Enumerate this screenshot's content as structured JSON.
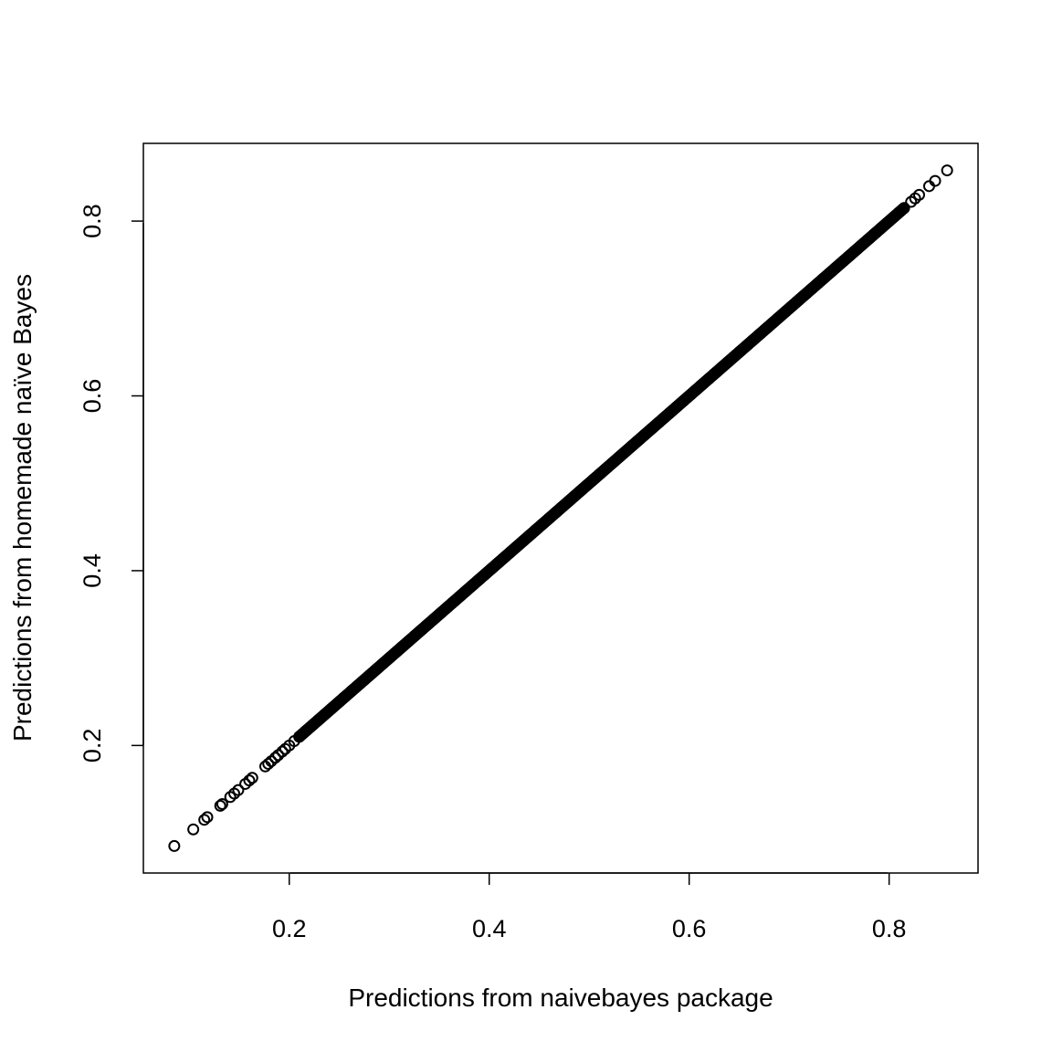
{
  "chart_data": {
    "type": "scatter",
    "title": "",
    "xlabel": "Predictions from naivebayes package",
    "ylabel": "Predictions from homemade naïve Bayes",
    "xlim": [
      0.085,
      0.858
    ],
    "ylim": [
      0.085,
      0.858
    ],
    "xticks": [
      0.2,
      0.4,
      0.6,
      0.8
    ],
    "xtick_labels": [
      "0.2",
      "0.4",
      "0.6",
      "0.8"
    ],
    "yticks": [
      0.2,
      0.4,
      0.6,
      0.8
    ],
    "ytick_labels": [
      "0.2",
      "0.4",
      "0.6",
      "0.8"
    ],
    "grid": false,
    "marker": "open circle",
    "color": "#000000",
    "relation": "y equals x (points lie on the identity line)",
    "points": [
      [
        0.085,
        0.085
      ],
      [
        0.104,
        0.104
      ],
      [
        0.115,
        0.115
      ],
      [
        0.118,
        0.118
      ],
      [
        0.131,
        0.131
      ],
      [
        0.133,
        0.133
      ],
      [
        0.141,
        0.141
      ],
      [
        0.145,
        0.145
      ],
      [
        0.149,
        0.149
      ],
      [
        0.156,
        0.156
      ],
      [
        0.16,
        0.16
      ],
      [
        0.163,
        0.163
      ],
      [
        0.176,
        0.176
      ],
      [
        0.179,
        0.179
      ],
      [
        0.182,
        0.182
      ],
      [
        0.186,
        0.186
      ],
      [
        0.189,
        0.189
      ],
      [
        0.193,
        0.193
      ],
      [
        0.196,
        0.196
      ],
      [
        0.2,
        0.2
      ],
      [
        0.205,
        0.205
      ],
      [
        0.21,
        0.21
      ],
      [
        0.815,
        0.815
      ],
      [
        0.822,
        0.822
      ],
      [
        0.826,
        0.826
      ],
      [
        0.83,
        0.83
      ],
      [
        0.84,
        0.84
      ],
      [
        0.846,
        0.846
      ],
      [
        0.858,
        0.858
      ]
    ],
    "dense_range": [
      0.21,
      0.815
    ],
    "dense_step": 0.0012
  }
}
